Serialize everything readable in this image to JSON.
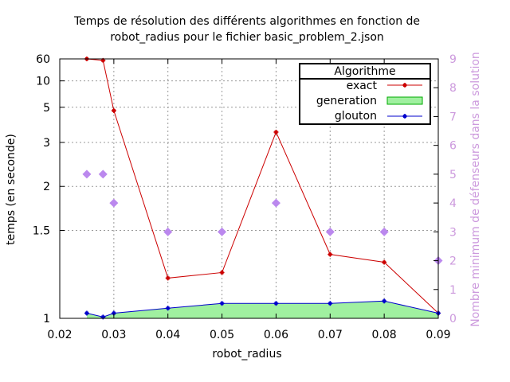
{
  "chart_data": {
    "type": "line",
    "title": "Temps de résolution des différents algorithmes en fonction de",
    "subtitle": "robot_radius pour le fichier basic_problem_2.json",
    "xlabel": "robot_radius",
    "ylabel": "temps (en seconde)",
    "y2label": "Nombre minimum de défenseurs dans la solution",
    "xlim": [
      0.02,
      0.09
    ],
    "x_ticks": [
      "0.02",
      "0.03",
      "0.04",
      "0.05",
      "0.06",
      "0.07",
      "0.08",
      "0.09"
    ],
    "y_scale": "reciprocal",
    "ylim": [
      1,
      60
    ],
    "y_ticks": [
      "1",
      "1.5",
      "2",
      "3",
      "5",
      "10",
      "60"
    ],
    "y2lim": [
      0,
      9
    ],
    "y2_ticks": [
      "0",
      "1",
      "2",
      "3",
      "4",
      "5",
      "6",
      "7",
      "8",
      "9"
    ],
    "grid": true,
    "legend": {
      "title": "Algorithme",
      "placement": "top-right",
      "entries": [
        "exact",
        "generation",
        "glouton"
      ]
    },
    "series": [
      {
        "name": "exact",
        "color": "#cc0000",
        "x": [
          0.025,
          0.028,
          0.03,
          0.04,
          0.05,
          0.06,
          0.07,
          0.08,
          0.09
        ],
        "y": [
          60,
          45,
          4.7,
          1.18,
          1.21,
          3.4,
          1.32,
          1.27,
          1.02
        ]
      },
      {
        "name": "glouton",
        "color": "#0000cc",
        "x": [
          0.025,
          0.028,
          0.03,
          0.04,
          0.05,
          0.06,
          0.07,
          0.08,
          0.09
        ],
        "y": [
          1.02,
          1.005,
          1.02,
          1.04,
          1.06,
          1.06,
          1.06,
          1.07,
          1.02
        ]
      }
    ],
    "generation": {
      "name": "generation",
      "fill": "#a0f0a0",
      "edge": "#00aa00",
      "x": [
        0.025,
        0.028,
        0.03,
        0.04,
        0.05,
        0.06,
        0.07,
        0.08,
        0.09
      ],
      "y": [
        1.02,
        1.005,
        1.02,
        1.04,
        1.06,
        1.06,
        1.06,
        1.07,
        1.02
      ]
    },
    "defenders": {
      "color": "#bb88ee",
      "axis_color": "#cc99dd",
      "x": [
        0.025,
        0.028,
        0.03,
        0.04,
        0.05,
        0.06,
        0.07,
        0.08,
        0.09
      ],
      "y": [
        5,
        5,
        4,
        3,
        3,
        4,
        3,
        3,
        2
      ]
    }
  }
}
